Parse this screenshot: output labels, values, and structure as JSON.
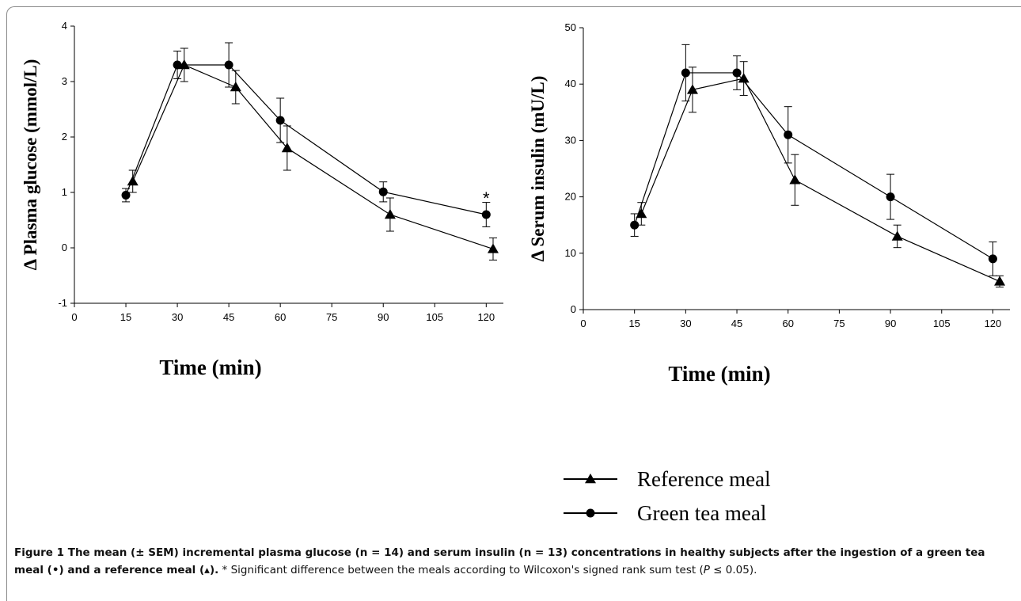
{
  "chart_data": [
    {
      "type": "line",
      "xlabel": "Time (min)",
      "ylabel": "Δ Plasma glucose (mmol/L)",
      "xlim": [
        0,
        125
      ],
      "ylim": [
        -1,
        4
      ],
      "xticks": [
        0,
        15,
        30,
        45,
        60,
        75,
        90,
        105,
        120
      ],
      "yticks": [
        -1,
        0,
        1,
        2,
        3,
        4
      ],
      "series": [
        {
          "key": "reference",
          "marker": "triangle",
          "x": [
            17,
            32,
            47,
            62,
            92,
            122
          ],
          "y": [
            1.2,
            3.3,
            2.9,
            1.8,
            0.6,
            -0.02
          ],
          "err": [
            0.2,
            0.3,
            0.3,
            0.4,
            0.3,
            0.2
          ]
        },
        {
          "key": "green_tea",
          "marker": "circle",
          "x": [
            15,
            30,
            45,
            60,
            90,
            120
          ],
          "y": [
            0.95,
            3.3,
            3.3,
            2.3,
            1.01,
            0.6
          ],
          "err": [
            0.12,
            0.25,
            0.4,
            0.4,
            0.18,
            0.22
          ]
        }
      ],
      "annotations": [
        {
          "text": "*",
          "x": 120,
          "y": 0.93
        }
      ]
    },
    {
      "type": "line",
      "xlabel": "Time (min)",
      "ylabel": "Δ Serum insulin (mU/L)",
      "xlim": [
        0,
        125
      ],
      "ylim": [
        0,
        50
      ],
      "xticks": [
        0,
        15,
        30,
        45,
        60,
        75,
        90,
        105,
        120
      ],
      "yticks": [
        0,
        10,
        20,
        30,
        40,
        50
      ],
      "series": [
        {
          "key": "reference",
          "marker": "triangle",
          "x": [
            17,
            32,
            47,
            62,
            92,
            122
          ],
          "y": [
            17,
            39,
            41,
            23,
            13,
            5
          ],
          "err": [
            2,
            4,
            3,
            4.5,
            2,
            1
          ]
        },
        {
          "key": "green_tea",
          "marker": "circle",
          "x": [
            15,
            30,
            45,
            60,
            90,
            120
          ],
          "y": [
            15,
            42,
            42,
            31,
            20,
            9
          ],
          "err": [
            2,
            5,
            3,
            5,
            4,
            3
          ]
        }
      ]
    }
  ],
  "legend": {
    "reference": "Reference meal",
    "green_tea": "Green tea meal"
  },
  "caption": {
    "bold": "Figure 1 The mean (± SEM) incremental plasma glucose (n = 14) and serum insulin (n = 13) concentrations in healthy subjects after the ingestion of a green tea meal (•) and a reference meal (▴).",
    "text_before_p": " * Significant difference between the meals according to Wilcoxon's signed rank sum test (",
    "p_symbol": "P",
    "text_after_p": " ≤ 0.05)."
  }
}
